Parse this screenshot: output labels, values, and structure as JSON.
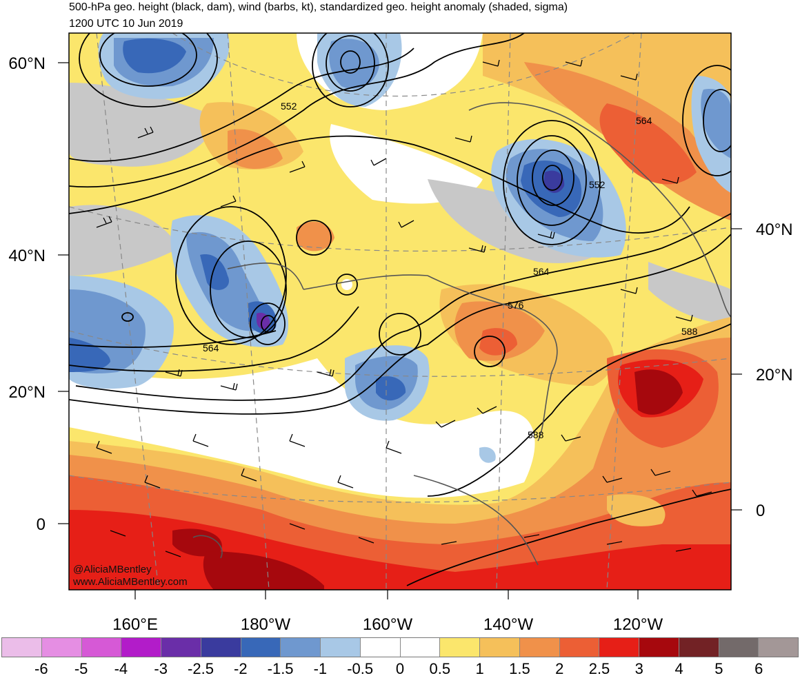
{
  "header": {
    "title": "500-hPa geo. height (black, dam), wind (barbs, kt), standardized geo. height anomaly (shaded, sigma)",
    "valid_time": "1200 UTC 10 Jun 2019"
  },
  "lat_labels_left": [
    "60°N",
    "40°N",
    "20°N",
    "0"
  ],
  "lat_labels_right": [
    "40°N",
    "20°N",
    "0"
  ],
  "lon_labels": [
    "160°E",
    "180°W",
    "160°W",
    "140°W",
    "120°W"
  ],
  "contour_labels": [
    "552",
    "552",
    "564",
    "564",
    "564",
    "576",
    "588",
    "588"
  ],
  "credits": [
    "@AliciaMBentley",
    "www.AliciaMBentley.com"
  ],
  "colorbar": {
    "labels": [
      "-6",
      "-5",
      "-4",
      "-3",
      "-2.5",
      "-2",
      "-1.5",
      "-1",
      "-0.5",
      "0",
      "0.5",
      "1",
      "1.5",
      "2",
      "2.5",
      "3",
      "4",
      "5",
      "6"
    ],
    "colors": [
      "#ebbde9",
      "#e58ee3",
      "#d659d6",
      "#b21cc9",
      "#6a2ea8",
      "#3a3b9e",
      "#3868b8",
      "#6f98cf",
      "#a8c8e6",
      "#ffffff",
      "#ffffff",
      "#fbe66c",
      "#f5c05a",
      "#f0914a",
      "#ec5f35",
      "#e61f17",
      "#a6080d",
      "#722225",
      "#736a6a",
      "#a39797"
    ]
  }
}
